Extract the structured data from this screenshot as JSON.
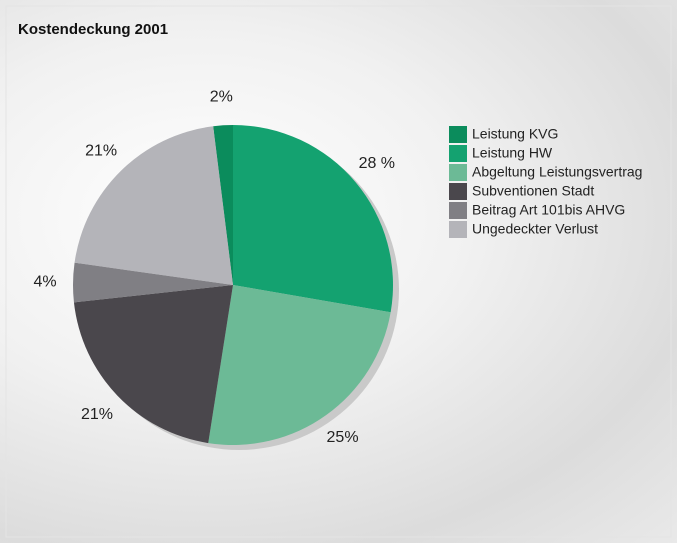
{
  "chart_data": {
    "type": "pie",
    "title": "Kostendeckung 2001",
    "categories": [
      "Leistung KVG",
      "Leistung HW",
      "Abgeltung Leistungsvertrag",
      "Subventionen Stadt",
      "Beitrag Art 101bis AHVG",
      "Ungedeckter Verlust"
    ],
    "values": [
      2,
      28,
      25,
      21,
      4,
      21
    ],
    "value_labels": [
      "2%",
      "28 %",
      "25%",
      "21%",
      "4%",
      "21%"
    ],
    "colors": [
      "#0b8c5c",
      "#14a270",
      "#6cba96",
      "#4a474c",
      "#807f84",
      "#b4b4b9"
    ],
    "legend": "right"
  }
}
